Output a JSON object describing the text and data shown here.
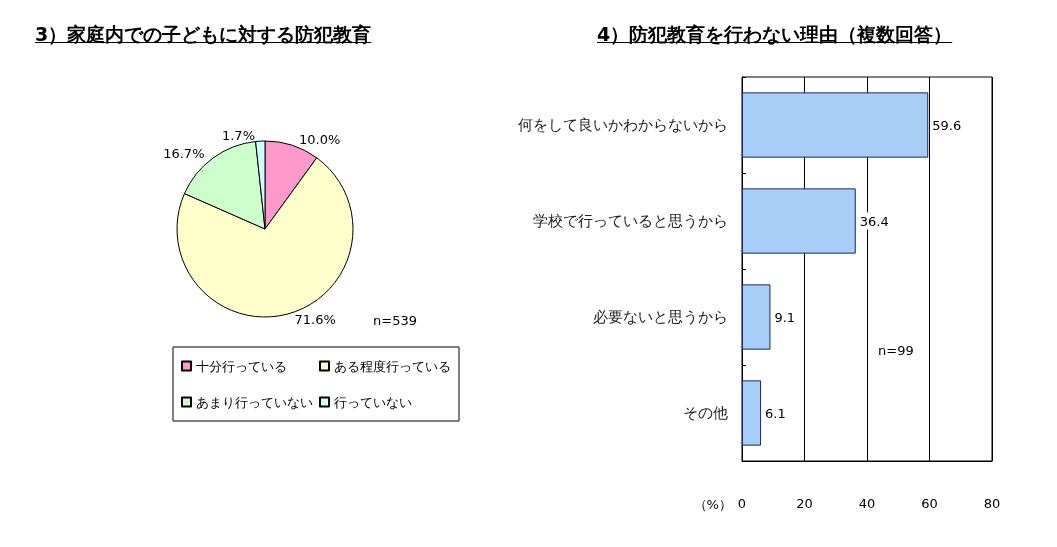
{
  "chart_data": [
    {
      "type": "pie",
      "title": "3）家庭内での子どもに対する防犯教育",
      "categories": [
        "十分行っている",
        "ある程度行っている",
        "あまり行っていない",
        "行っていない"
      ],
      "values": [
        10.0,
        71.6,
        16.7,
        1.7
      ],
      "value_labels": [
        "10.0%",
        "71.6%",
        "16.7%",
        "1.7%"
      ],
      "colors": [
        "#ff99cc",
        "#ffffcc",
        "#ccffcc",
        "#ccffff"
      ],
      "legend": "bottom",
      "annotations": [
        "n=539"
      ]
    },
    {
      "type": "bar",
      "orientation": "horizontal",
      "title": "4）防犯教育を行わない理由（複数回答）",
      "categories": [
        "何をして良いかわからないから",
        "学校で行っていると思うから",
        "必要ないと思うから",
        "その他"
      ],
      "values": [
        59.6,
        36.4,
        9.1,
        6.1
      ],
      "color": "#a8cdf6",
      "xlabel": "（%）",
      "xlim": [
        0,
        80
      ],
      "xticks": [
        0,
        20,
        40,
        60,
        80
      ],
      "grid": "x",
      "data_labels": true,
      "annotations": [
        "n=99"
      ]
    }
  ]
}
